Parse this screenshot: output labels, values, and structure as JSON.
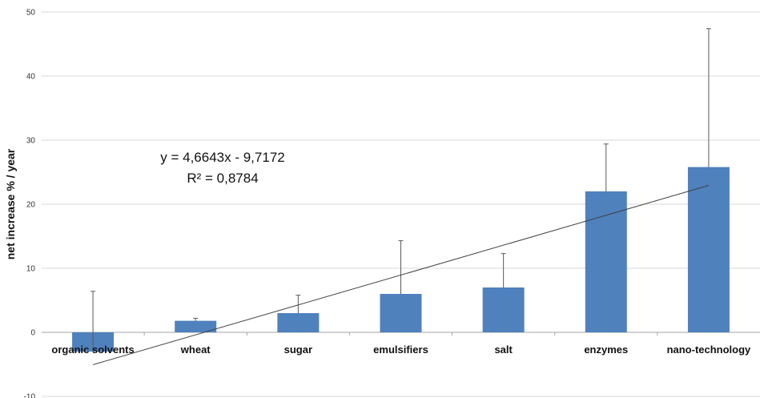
{
  "chart_data": {
    "type": "bar",
    "title": "",
    "xlabel": "",
    "ylabel": "net increase % / year",
    "ylim": [
      -10,
      50
    ],
    "yticks": [
      -10,
      0,
      10,
      20,
      30,
      40,
      50
    ],
    "grid": true,
    "legend": "none",
    "categories": [
      "organic solvents",
      "wheat",
      "sugar",
      "emulsifiers",
      "salt",
      "enzymes",
      "nano-technology"
    ],
    "series": [
      {
        "values": [
          -3,
          1.8,
          3,
          6,
          7,
          22,
          25.8
        ],
        "error_plus": [
          9.4,
          0.4,
          2.8,
          8.3,
          5.3,
          7.4,
          21.6
        ],
        "color": "#4f81bd"
      }
    ],
    "trendline": {
      "type": "linear",
      "slope": 4.6643,
      "intercept": -9.7172,
      "equation_text": "y = 4,6643x - 9,7172",
      "r2_text": "R² = 0,8784"
    },
    "colors": {
      "bar": "#4f81bd",
      "grid": "#d9d9d9",
      "axis": "#a6a6a6",
      "trend": "#404040",
      "error": "#595959"
    }
  }
}
